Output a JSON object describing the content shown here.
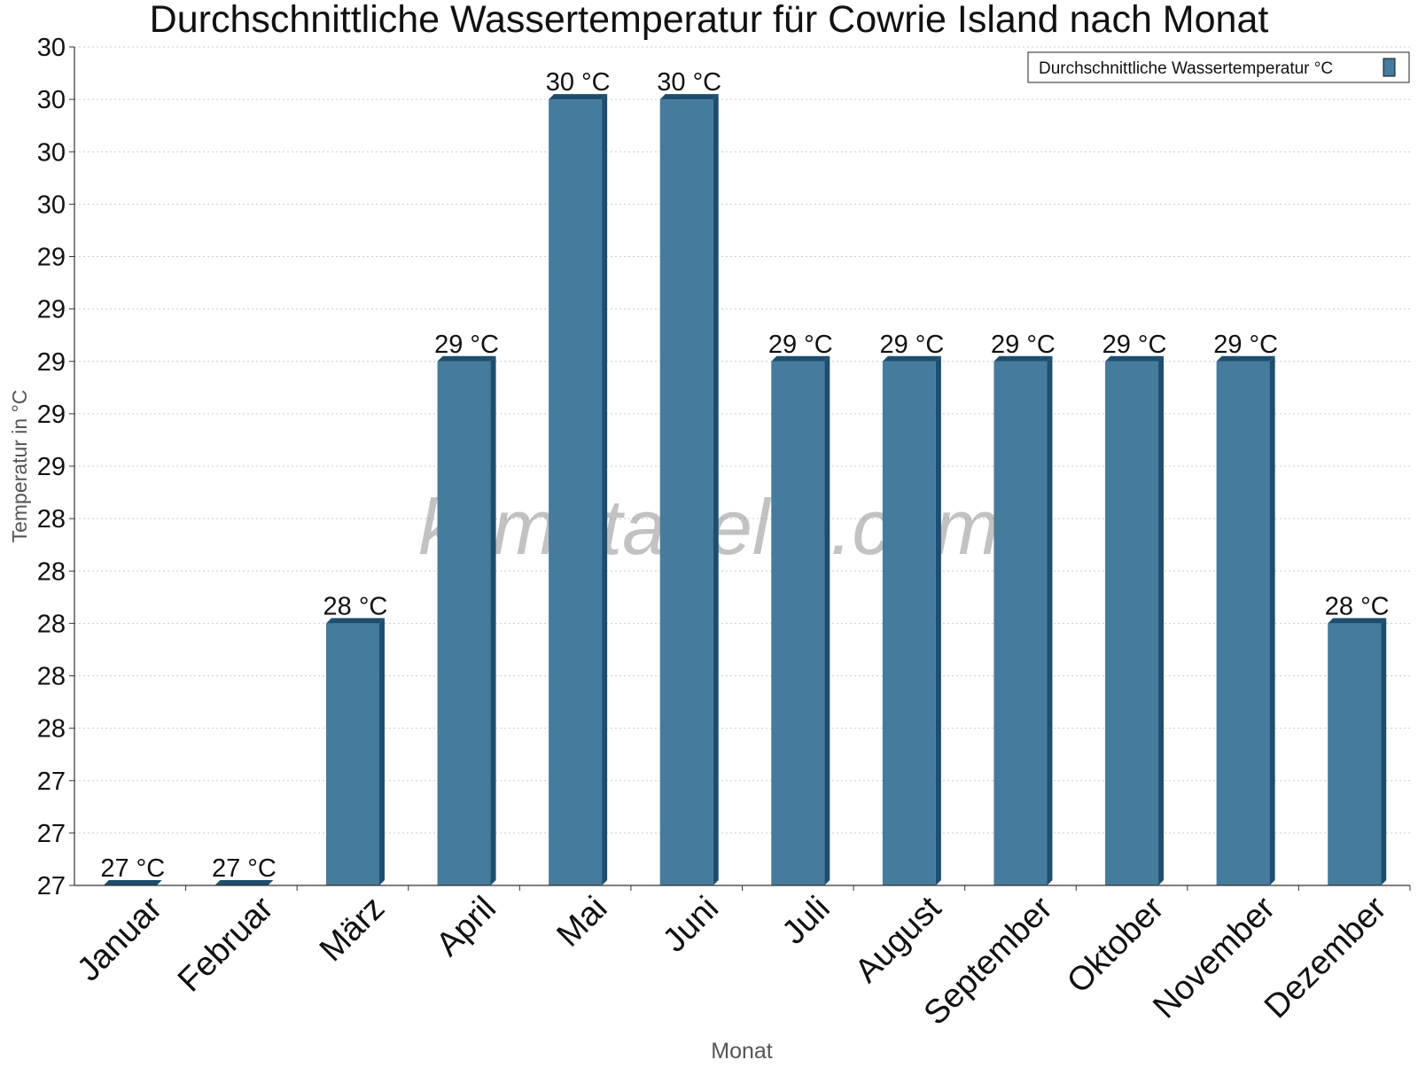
{
  "chart_data": {
    "type": "bar",
    "title": "Durchschnittliche Wassertemperatur für Cowrie Island nach Monat",
    "xlabel": "Monat",
    "ylabel": "Temperatur in °C",
    "categories": [
      "Januar",
      "Februar",
      "März",
      "April",
      "Mai",
      "Juni",
      "Juli",
      "August",
      "September",
      "Oktober",
      "November",
      "Dezember"
    ],
    "series": [
      {
        "name": "Durchschnittliche Wassertemperatur °C",
        "values": [
          27,
          27,
          28,
          29,
          30,
          30,
          29,
          29,
          29,
          29,
          29,
          28
        ],
        "data_labels": [
          "27 °C",
          "27 °C",
          "28 °C",
          "29 °C",
          "30 °C",
          "30 °C",
          "29 °C",
          "29 °C",
          "29 °C",
          "29 °C",
          "29 °C",
          "28 °C"
        ]
      }
    ],
    "ylim": [
      27,
      30
    ],
    "y_tick_values": [
      27,
      27.2,
      27.4,
      27.6,
      27.8,
      28,
      28.2,
      28.4,
      28.6,
      28.8,
      29,
      29.2,
      29.4,
      29.6,
      29.8,
      30,
      30.2
    ],
    "y_tick_labels": [
      "27",
      "27",
      "27",
      "28",
      "28",
      "28",
      "28",
      "28",
      "29",
      "29",
      "29",
      "29",
      "29",
      "30",
      "30",
      "30",
      "30"
    ],
    "grid": true,
    "legend": "top-right",
    "watermark": "klimatabelle.com",
    "colors": {
      "bar_front": "#457b9d",
      "bar_side": "#1d4e6f",
      "grid": "#cccccc",
      "axis": "#333333"
    }
  }
}
